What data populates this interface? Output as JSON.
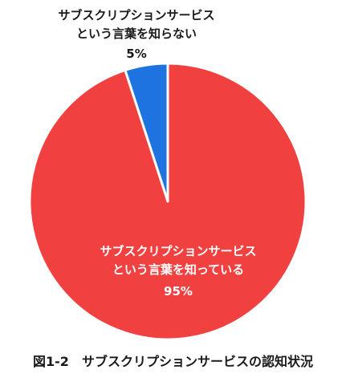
{
  "chart_data": {
    "type": "pie",
    "categories": [
      "サブスクリプションサービスという言葉を知らない",
      "サブスクリプションサービスという言葉を知っている"
    ],
    "values": [
      5,
      95
    ],
    "colors": [
      "#1e73e0",
      "#f04040"
    ],
    "slices": [
      {
        "label_lines": [
          "サブスクリプションサービス",
          "という言葉を知らない"
        ],
        "value_label": "5%",
        "value": 5,
        "color": "#1e73e0"
      },
      {
        "label_lines": [
          "サブスクリプションサービス",
          "という言葉を知っている"
        ],
        "value_label": "95%",
        "value": 95,
        "color": "#f04040"
      }
    ],
    "title": "図1-2　サブスクリプションサービスの認知状況"
  }
}
